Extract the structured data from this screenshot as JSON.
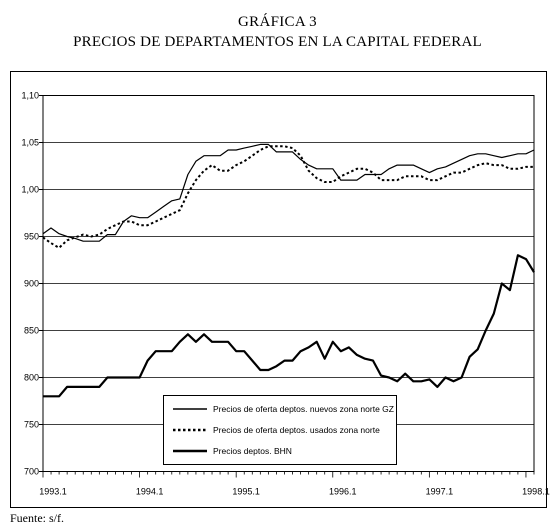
{
  "chart_data": {
    "type": "line",
    "label": "GRÁFICA 3",
    "title": "PRECIOS DE DEPARTAMENTOS EN LA CAPITAL FEDERAL",
    "y_tick_labels": [
      "700",
      "750",
      "800",
      "850",
      "900",
      "950",
      "1,00",
      "1,05",
      "1,10"
    ],
    "ylim": [
      700,
      1100
    ],
    "x_tick_labels": [
      "1993.1",
      "1994.1",
      "1995.1",
      "1996.1",
      "1997.1",
      "1998.1"
    ],
    "xlim": [
      0,
      61
    ],
    "grid": "horizontal",
    "legend_position": "bottom-left",
    "series": [
      {
        "name": "Precios de oferta deptos. nuevos zona norte GZ",
        "style": "solid-thin",
        "color": "#000000",
        "values": [
          953,
          959,
          953,
          950,
          948,
          945,
          945,
          945,
          952,
          952,
          966,
          972,
          970,
          970,
          976,
          982,
          988,
          990,
          1016,
          1030,
          1036,
          1036,
          1036,
          1042,
          1042,
          1044,
          1046,
          1048,
          1048,
          1040,
          1040,
          1040,
          1032,
          1026,
          1022,
          1022,
          1022,
          1010,
          1010,
          1010,
          1016,
          1016,
          1016,
          1022,
          1026,
          1026,
          1026,
          1022,
          1018,
          1022,
          1024,
          1028,
          1032,
          1036,
          1038,
          1038,
          1036,
          1034,
          1036,
          1038,
          1038,
          1042
        ]
      },
      {
        "name": "Precios de oferta deptos. usados zona norte",
        "style": "dotted",
        "color": "#000000",
        "values": [
          949,
          943,
          938,
          946,
          949,
          952,
          950,
          952,
          958,
          962,
          966,
          966,
          962,
          962,
          966,
          970,
          974,
          978,
          996,
          1010,
          1020,
          1026,
          1020,
          1020,
          1026,
          1030,
          1036,
          1042,
          1046,
          1046,
          1046,
          1044,
          1036,
          1020,
          1012,
          1008,
          1008,
          1014,
          1018,
          1022,
          1022,
          1018,
          1010,
          1010,
          1010,
          1014,
          1014,
          1014,
          1010,
          1010,
          1014,
          1018,
          1018,
          1022,
          1026,
          1028,
          1026,
          1026,
          1022,
          1022,
          1024,
          1024
        ]
      },
      {
        "name": "Precios deptos. BHN",
        "style": "solid-thick",
        "color": "#000000",
        "values": [
          780,
          780,
          780,
          790,
          790,
          790,
          790,
          790,
          800,
          800,
          800,
          800,
          800,
          818,
          828,
          828,
          828,
          838,
          846,
          838,
          846,
          838,
          838,
          838,
          828,
          828,
          818,
          808,
          808,
          812,
          818,
          818,
          828,
          832,
          838,
          820,
          838,
          828,
          832,
          824,
          820,
          818,
          802,
          800,
          796,
          804,
          796,
          796,
          798,
          790,
          800,
          796,
          800,
          822,
          830,
          850,
          868,
          900,
          893,
          930,
          926,
          912
        ]
      }
    ]
  },
  "source": "Fuente: s/f."
}
